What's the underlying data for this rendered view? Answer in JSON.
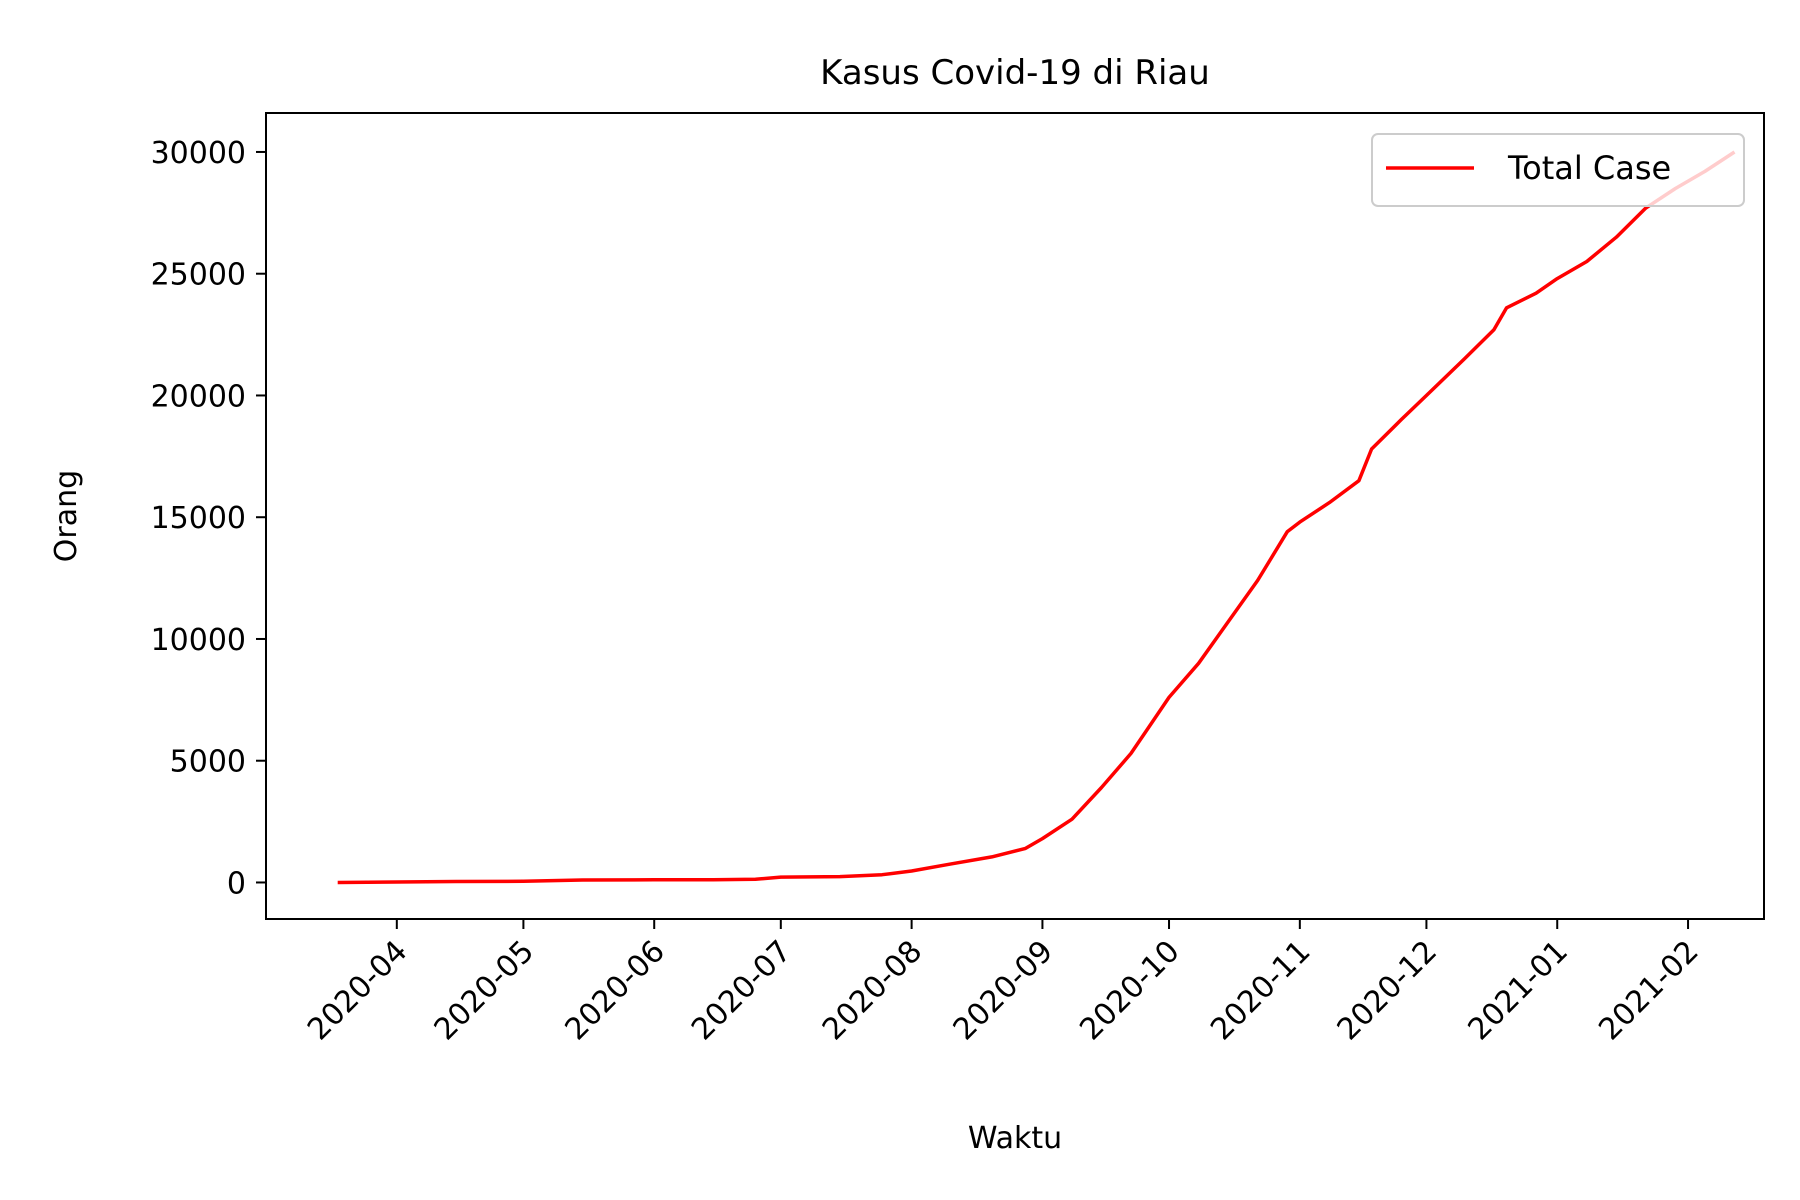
{
  "chart_data": {
    "type": "line",
    "title": "Kasus Covid-19 di Riau",
    "xlabel": "Waktu",
    "ylabel": "Orang",
    "xlim": [
      "2020-03-01",
      "2021-02-19"
    ],
    "ylim": [
      -1500,
      31600
    ],
    "x_ticks": [
      "2020-04",
      "2020-05",
      "2020-06",
      "2020-07",
      "2020-08",
      "2020-09",
      "2020-10",
      "2020-11",
      "2020-12",
      "2021-01",
      "2021-02"
    ],
    "y_ticks": [
      0,
      5000,
      10000,
      15000,
      20000,
      25000,
      30000
    ],
    "grid": false,
    "legend": {
      "position": "top-right",
      "entries": [
        "Total Case"
      ]
    },
    "series": [
      {
        "name": "Total Case",
        "color": "#ff0000",
        "x": [
          "2020-03-18",
          "2020-04-01",
          "2020-04-15",
          "2020-05-01",
          "2020-05-15",
          "2020-06-01",
          "2020-06-15",
          "2020-06-25",
          "2020-07-01",
          "2020-07-15",
          "2020-07-25",
          "2020-08-01",
          "2020-08-10",
          "2020-08-20",
          "2020-08-28",
          "2020-09-01",
          "2020-09-08",
          "2020-09-15",
          "2020-09-22",
          "2020-10-01",
          "2020-10-08",
          "2020-10-15",
          "2020-10-22",
          "2020-10-29",
          "2020-11-01",
          "2020-11-08",
          "2020-11-15",
          "2020-11-18",
          "2020-11-25",
          "2020-12-01",
          "2020-12-10",
          "2020-12-17",
          "2020-12-20",
          "2020-12-27",
          "2021-01-01",
          "2021-01-08",
          "2021-01-15",
          "2021-01-22",
          "2021-01-29",
          "2021-02-05",
          "2021-02-12"
        ],
        "values": [
          0,
          20,
          40,
          50,
          100,
          110,
          110,
          130,
          220,
          240,
          320,
          470,
          750,
          1050,
          1400,
          1800,
          2600,
          3900,
          5300,
          7600,
          9000,
          10700,
          12400,
          14400,
          14800,
          15600,
          16500,
          17800,
          19000,
          20000,
          21500,
          22700,
          23600,
          24200,
          24800,
          25500,
          26500,
          27700,
          28500,
          29200,
          30000
        ]
      }
    ]
  }
}
